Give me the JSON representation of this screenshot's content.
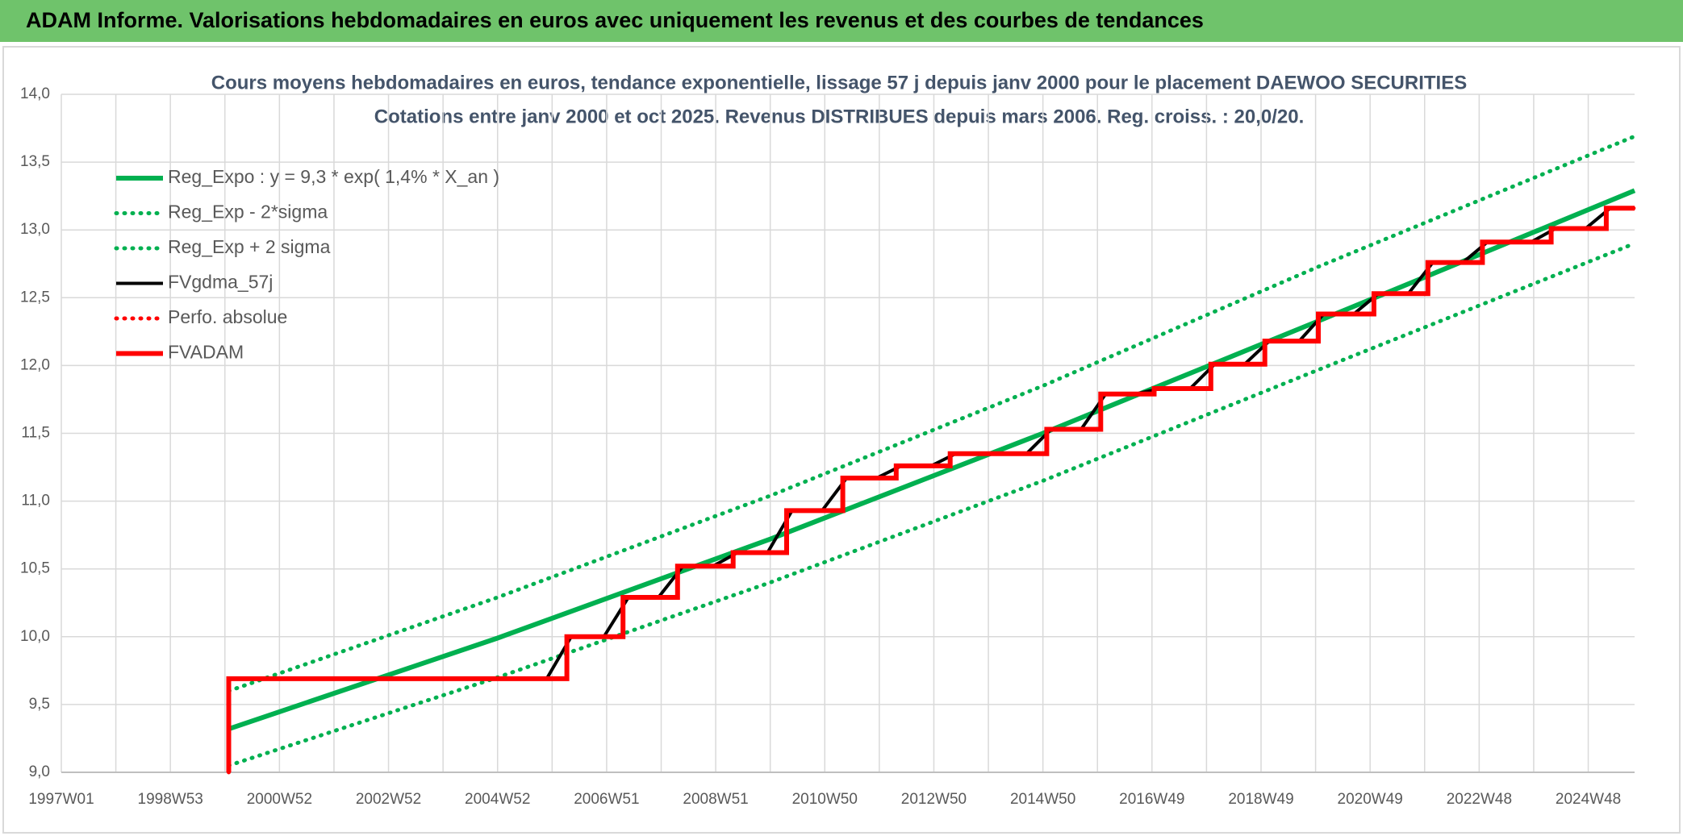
{
  "header": {
    "title": "ADAM Informe. Valorisations hebdomadaires en euros avec uniquement les revenus et des courbes de tendances"
  },
  "chart_data": {
    "type": "line",
    "title": "Cours moyens hebdomadaires en euros, tendance exponentielle, lissage 57 j depuis janv 2000 pour le placement DAEWOO SECURITIES",
    "subtitle": "Cotations entre janv 2000 et oct 2025. Revenus DISTRIBUES depuis mars 2006. Reg. croiss. : 20,0/20.",
    "xlim": [
      1997,
      2025.85
    ],
    "xticks": [
      {
        "value": 1997,
        "label": "1997W01"
      },
      {
        "value": 1999,
        "label": "1998W53"
      },
      {
        "value": 2001,
        "label": "2000W52"
      },
      {
        "value": 2003,
        "label": "2002W52"
      },
      {
        "value": 2005,
        "label": "2004W52"
      },
      {
        "value": 2007,
        "label": "2006W51"
      },
      {
        "value": 2009,
        "label": "2008W51"
      },
      {
        "value": 2011,
        "label": "2010W50"
      },
      {
        "value": 2013,
        "label": "2012W50"
      },
      {
        "value": 2015,
        "label": "2014W50"
      },
      {
        "value": 2017,
        "label": "2016W49"
      },
      {
        "value": 2019,
        "label": "2018W49"
      },
      {
        "value": 2021,
        "label": "2020W49"
      },
      {
        "value": 2023,
        "label": "2022W48"
      },
      {
        "value": 2025,
        "label": "2024W48"
      }
    ],
    "xgrid_minor": [
      1998,
      2000,
      2002,
      2004,
      2006,
      2008,
      2010,
      2012,
      2014,
      2016,
      2018,
      2020,
      2022,
      2024
    ],
    "ylim": [
      9.0,
      14.0
    ],
    "yticks": [
      {
        "value": 9.0,
        "label": "9,0"
      },
      {
        "value": 9.5,
        "label": "9,5"
      },
      {
        "value": 10.0,
        "label": "10,0"
      },
      {
        "value": 10.5,
        "label": "10,5"
      },
      {
        "value": 11.0,
        "label": "11,0"
      },
      {
        "value": 11.5,
        "label": "11,5"
      },
      {
        "value": 12.0,
        "label": "12,0"
      },
      {
        "value": 12.5,
        "label": "12,5"
      },
      {
        "value": 13.0,
        "label": "13,0"
      },
      {
        "value": 13.5,
        "label": "13,5"
      },
      {
        "value": 14.0,
        "label": "14,0"
      }
    ],
    "grid": true,
    "legend": "upper-left",
    "series": [
      {
        "name": "Reg_Expo : y = 9,3 * exp( 1,4% *  X_an )",
        "color": "#00b050",
        "style": "solid",
        "x": [
          2000.07,
          2005,
          2010,
          2015,
          2020,
          2025.85
        ],
        "values": [
          9.32,
          9.99,
          10.72,
          11.5,
          12.32,
          13.29
        ]
      },
      {
        "name": "Reg_Exp - 2*sigma",
        "color": "#00b050",
        "style": "dotted",
        "x": [
          2000.07,
          2005,
          2010,
          2015,
          2020,
          2025.85
        ],
        "values": [
          9.05,
          9.7,
          10.4,
          11.15,
          11.96,
          12.9
        ]
      },
      {
        "name": "Reg_Exp + 2 sigma",
        "color": "#00b050",
        "style": "dotted",
        "x": [
          2000.07,
          2005,
          2010,
          2015,
          2020,
          2025.85
        ],
        "values": [
          9.6,
          10.29,
          11.04,
          11.85,
          12.72,
          13.69
        ]
      },
      {
        "name": "FVgdma_57j",
        "color": "#000000",
        "style": "solid",
        "x": [
          2000.07,
          2005.9,
          2006.35,
          2006.95,
          2007.4,
          2007.95,
          2008.4,
          2008.95,
          2009.4,
          2009.95,
          2010.4,
          2010.95,
          2011.4,
          2011.95,
          2012.4,
          2012.95,
          2013.4,
          2014.7,
          2015.15,
          2015.7,
          2016.15,
          2016.7,
          2017.15,
          2017.7,
          2018.15,
          2018.7,
          2019.15,
          2019.7,
          2020.15,
          2020.7,
          2021.15,
          2021.7,
          2022.15,
          2022.7,
          2023.15,
          2023.95,
          2024.4,
          2024.95,
          2025.4,
          2025.85
        ],
        "values": [
          9.69,
          9.69,
          10.0,
          10.0,
          10.29,
          10.29,
          10.52,
          10.52,
          10.62,
          10.62,
          10.93,
          10.93,
          11.17,
          11.17,
          11.26,
          11.26,
          11.35,
          11.35,
          11.53,
          11.53,
          11.79,
          11.79,
          11.83,
          11.83,
          12.01,
          12.01,
          12.18,
          12.18,
          12.38,
          12.38,
          12.53,
          12.53,
          12.76,
          12.76,
          12.91,
          12.91,
          13.01,
          13.01,
          13.16,
          13.16
        ]
      },
      {
        "name": "Perfo. absolue",
        "color": "#ff0000",
        "style": "dotted",
        "x": [
          2000.07,
          2000.07,
          2006.27,
          2006.27,
          2007.3,
          2007.3,
          2008.3,
          2008.3,
          2009.32,
          2009.32,
          2010.3,
          2010.3,
          2011.33,
          2011.33,
          2012.31,
          2012.31,
          2013.3,
          2013.3,
          2015.07,
          2015.07,
          2016.06,
          2016.06,
          2017.04,
          2017.04,
          2018.08,
          2018.08,
          2019.07,
          2019.07,
          2020.05,
          2020.05,
          2021.07,
          2021.07,
          2022.06,
          2022.06,
          2023.06,
          2023.06,
          2024.32,
          2024.32,
          2025.33,
          2025.33,
          2025.85
        ],
        "values": [
          9.0,
          9.69,
          9.69,
          10.0,
          10.0,
          10.29,
          10.29,
          10.52,
          10.52,
          10.62,
          10.62,
          10.93,
          10.93,
          11.17,
          11.17,
          11.26,
          11.26,
          11.35,
          11.35,
          11.53,
          11.53,
          11.79,
          11.79,
          11.83,
          11.83,
          12.01,
          12.01,
          12.18,
          12.18,
          12.38,
          12.38,
          12.53,
          12.53,
          12.76,
          12.76,
          12.91,
          12.91,
          13.01,
          13.01,
          13.16,
          13.16
        ]
      },
      {
        "name": "FVADAM",
        "color": "#ff0000",
        "style": "solid",
        "x": [
          2000.07,
          2000.07,
          2006.27,
          2006.27,
          2007.3,
          2007.3,
          2008.3,
          2008.3,
          2009.32,
          2009.32,
          2010.3,
          2010.3,
          2011.33,
          2011.33,
          2012.31,
          2012.31,
          2013.3,
          2013.3,
          2015.07,
          2015.07,
          2016.06,
          2016.06,
          2017.04,
          2017.04,
          2018.08,
          2018.08,
          2019.07,
          2019.07,
          2020.05,
          2020.05,
          2021.07,
          2021.07,
          2022.06,
          2022.06,
          2023.06,
          2023.06,
          2024.32,
          2024.32,
          2025.33,
          2025.33,
          2025.85
        ],
        "values": [
          9.0,
          9.69,
          9.69,
          10.0,
          10.0,
          10.29,
          10.29,
          10.52,
          10.52,
          10.62,
          10.62,
          10.93,
          10.93,
          11.17,
          11.17,
          11.26,
          11.26,
          11.35,
          11.35,
          11.53,
          11.53,
          11.79,
          11.79,
          11.83,
          11.83,
          12.01,
          12.01,
          12.18,
          12.18,
          12.38,
          12.38,
          12.53,
          12.53,
          12.76,
          12.76,
          12.91,
          12.91,
          13.01,
          13.01,
          13.16,
          13.16
        ]
      }
    ]
  }
}
